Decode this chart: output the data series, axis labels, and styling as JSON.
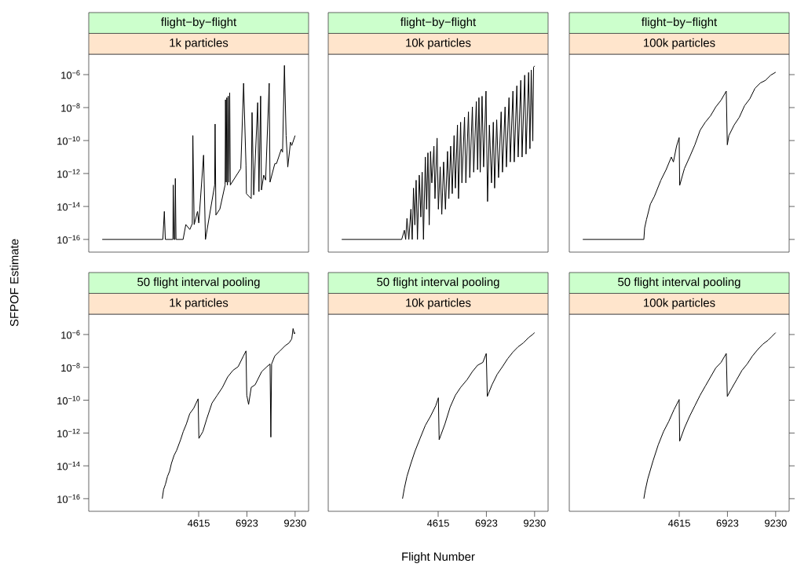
{
  "chart_data": [
    {
      "type": "line",
      "title": "flight−by−flight",
      "subtitle": "1k particles",
      "log": "y",
      "tick_labels": "y",
      "xlim": [
        -646,
        9876
      ],
      "ylim": [
        1.7e-17,
        1.74e-05
      ],
      "xticks": [
        4615,
        6923,
        9230
      ],
      "yticks": [
        {
          "value": 1e-16,
          "label": "10$^{−16}$"
        },
        {
          "value": 1e-14,
          "label": "10$^{−14}$"
        },
        {
          "value": 1e-12,
          "label": "10$^{−12}$"
        },
        {
          "value": 1e-10,
          "label": "10$^{−10}$"
        },
        {
          "value": 1e-08,
          "label": "10$^{−8}$"
        },
        {
          "value": 1e-06,
          "label": "10$^{−6}$"
        }
      ],
      "series": [
        {
          "color": "#000000",
          "x": [
            0,
            2900,
            2972,
            3020,
            3380,
            3398,
            3440,
            3480,
            3498,
            3530,
            3870,
            4000,
            4190,
            4310,
            4337,
            4400,
            4560,
            4620,
            4850,
            4940,
            5380,
            5401,
            5440,
            5630,
            5880,
            5900,
            5930,
            5960,
            5990,
            6030,
            6060,
            6100,
            6130,
            6630,
            6766,
            6880,
            6900,
            7130,
            7170,
            7250,
            7440,
            7500,
            7580,
            7620,
            7730,
            7820,
            7990,
            8030,
            8260,
            8340,
            8570,
            8630,
            8719,
            8800,
            8880,
            9010,
            9070,
            9230
          ],
          "values": [
            1e-16,
            1e-16,
            5e-15,
            1e-16,
            1e-16,
            2e-13,
            1e-16,
            1e-16,
            5e-13,
            1e-16,
            1e-16,
            8e-16,
            4e-16,
            9e-16,
            2e-10,
            8e-16,
            5e-15,
            1e-15,
            1.3e-11,
            1e-16,
            2e-13,
            1e-09,
            3e-15,
            7e-15,
            2e-13,
            3e-08,
            3e-13,
            4e-08,
            2e-13,
            5e-08,
            3e-13,
            8e-08,
            2e-13,
            2e-12,
            3e-07,
            3e-12,
            6e-14,
            3e-14,
            5e-09,
            5e-14,
            2e-08,
            8e-14,
            5e-08,
            1e-13,
            8e-13,
            4e-13,
            3e-07,
            3e-13,
            4e-12,
            4e-12,
            3e-11,
            2e-11,
            3.6e-06,
            2e-10,
            2.5e-12,
            8e-11,
            5e-11,
            2e-10
          ]
        }
      ]
    },
    {
      "type": "line",
      "title": "flight−by−flight",
      "subtitle": "10k particles",
      "log": "y",
      "tick_labels": false,
      "xlim": [
        -646,
        9876
      ],
      "ylim": [
        1.7e-17,
        1.74e-05
      ],
      "xticks": [
        4615,
        6923,
        9230
      ],
      "yticks": [
        1e-16,
        1e-14,
        1e-12,
        1e-10,
        1e-08,
        1e-06
      ],
      "series": [
        {
          "color": "#000000",
          "x": [
            0,
            2810,
            2870,
            2998,
            3060,
            3123,
            3211,
            3311,
            3373,
            3436,
            3499,
            3561,
            3624,
            3711,
            3787,
            3849,
            3912,
            4000,
            4062,
            4125,
            4187,
            4250,
            4312,
            4413,
            4463,
            4563,
            4625,
            4713,
            4788,
            4876,
            4963,
            5064,
            5126,
            5214,
            5289,
            5377,
            5439,
            5539,
            5589,
            5690,
            5752,
            5877,
            5940,
            6065,
            6128,
            6253,
            6316,
            6441,
            6503,
            6566,
            6629,
            6716,
            6791,
            6904,
            6979,
            7067,
            7167,
            7255,
            7317,
            7417,
            7505,
            7630,
            7693,
            7818,
            7881,
            8006,
            8068,
            8194,
            8256,
            8381,
            8444,
            8569,
            8632,
            8757,
            8820,
            8945,
            9007,
            9070,
            9145,
            9180,
            9230
          ],
          "values": [
            1e-16,
            1e-16,
            1e-16,
            3.6e-16,
            1e-16,
            1.9e-15,
            1e-16,
            6.8e-15,
            1e-16,
            1.3e-13,
            7.6e-16,
            3.9e-13,
            1e-16,
            8e-13,
            2.3e-15,
            1.2e-12,
            1e-16,
            1e-11,
            6.8e-15,
            1.8e-11,
            7.6e-16,
            2.2e-11,
            2.7e-13,
            4.6e-11,
            3e-14,
            1.4e-10,
            6.8e-15,
            2.5e-12,
            3.3e-15,
            5e-12,
            6.8e-15,
            2.2e-11,
            3e-14,
            4.6e-11,
            6e-14,
            2e-10,
            1.3e-13,
            8.7e-10,
            3e-14,
            1.3e-09,
            2.7e-13,
            2.6e-09,
            2.7e-13,
            5.5e-09,
            5.6e-13,
            1.1e-08,
            1.2e-12,
            2.3e-08,
            1.7e-12,
            4e-08,
            1.2e-12,
            4.9e-08,
            2.5e-12,
            1e-07,
            2e-14,
            8.7e-10,
            2.7e-13,
            1.3e-09,
            1.3e-13,
            1.8e-09,
            5.6e-13,
            5.5e-09,
            1.2e-12,
            1.1e-08,
            2.5e-12,
            4e-08,
            5e-12,
            1e-07,
            5e-12,
            2.1e-07,
            1e-11,
            4.5e-07,
            1e-11,
            9.3e-07,
            1.5e-11,
            1.35e-06,
            3.2e-11,
            1.9e-06,
            9.5e-11,
            2.8e-06,
            3.4e-06
          ]
        }
      ]
    },
    {
      "type": "line",
      "title": "flight−by−flight",
      "subtitle": "100k particles",
      "log": "y",
      "tick_labels": false,
      "xlim": [
        -646,
        9876
      ],
      "ylim": [
        1.7e-17,
        1.74e-05
      ],
      "xticks": [
        4615,
        6923,
        9230
      ],
      "yticks": [
        1e-16,
        1e-14,
        1e-12,
        1e-10,
        1e-08,
        1e-06
      ],
      "series": [
        {
          "color": "#000000",
          "x": [
            0,
            2922,
            2960,
            3048,
            3235,
            3423,
            3736,
            3987,
            4237,
            4337,
            4487,
            4612,
            4637,
            4863,
            5113,
            5364,
            5614,
            5864,
            6115,
            6365,
            6616,
            6866,
            6916,
            6991,
            7242,
            7492,
            7742,
            7993,
            8243,
            8494,
            8744,
            8995,
            9230
          ],
          "values": [
            1e-16,
            1e-16,
            5e-16,
            1.6e-15,
            1.4e-14,
            4e-14,
            3.9e-13,
            1.7e-12,
            1e-11,
            5e-12,
            4.6e-11,
            1.5e-10,
            1.9e-13,
            2e-12,
            1e-11,
            5.5e-11,
            4.2e-10,
            1.3e-09,
            3.2e-09,
            1.1e-08,
            2.8e-08,
            1e-07,
            5.5e-11,
            2e-10,
            8.7e-10,
            2.6e-09,
            1.3e-08,
            3.4e-08,
            1.5e-07,
            3.1e-07,
            4.5e-07,
            9.3e-07,
            1.4e-06
          ]
        }
      ]
    },
    {
      "type": "line",
      "title": "50 flight interval pooling",
      "subtitle": "1k particles",
      "ylabel": "SFPOF Estimate",
      "log": "y",
      "xlim": [
        -646,
        9876
      ],
      "ylim": [
        1.7e-17,
        1.74e-05
      ],
      "xticks": [
        4615,
        6923,
        9230
      ],
      "yticks": [
        {
          "value": 1e-16,
          "label": "10$^{−16}$"
        },
        {
          "value": 1e-14,
          "label": "10$^{−14}$"
        },
        {
          "value": 1e-12,
          "label": "10$^{−12}$"
        },
        {
          "value": 1e-10,
          "label": "10$^{−10}$"
        },
        {
          "value": 1e-08,
          "label": "10$^{−8}$"
        },
        {
          "value": 1e-06,
          "label": "10$^{−6}$"
        }
      ],
      "series": [
        {
          "color": "#000000",
          "x": [
            2873,
            2936,
            3024,
            3124,
            3224,
            3311,
            3437,
            3562,
            3750,
            3875,
            4025,
            4188,
            4376,
            4589,
            4626,
            4814,
            5002,
            5252,
            5503,
            5753,
            6003,
            6254,
            6504,
            6755,
            6880,
            6917,
            7005,
            7130,
            7318,
            7631,
            7881,
            8031,
            8069,
            8106,
            8256,
            8507,
            8757,
            8945,
            9070,
            9133,
            9196,
            9230
          ],
          "values": [
            1e-16,
            3.6e-16,
            7.5e-16,
            2.3e-15,
            4.7e-15,
            1.4e-14,
            4.3e-14,
            8.9e-14,
            3.9e-13,
            1.2e-12,
            3.5e-12,
            1.5e-11,
            3.2e-11,
            1.2e-10,
            4.7e-13,
            1.2e-12,
            7.3e-12,
            6.6e-11,
            2e-10,
            6e-10,
            2.6e-09,
            6.5e-09,
            1.1e-08,
            4.9e-08,
            1e-07,
            2e-10,
            5.5e-11,
            6e-10,
            8.7e-10,
            5.5e-09,
            1.1e-08,
            1.6e-08,
            5.6e-13,
            1.6e-08,
            4.9e-08,
            1e-07,
            2.1e-07,
            3.1e-07,
            5.4e-07,
            2.3e-06,
            1.1e-06,
            1.3e-06
          ]
        }
      ]
    },
    {
      "type": "line",
      "title": "50 flight interval pooling",
      "subtitle": "10k particles",
      "xlabel": "Flight Number",
      "log": "y",
      "tick_labels": "x",
      "xlim": [
        -646,
        9876
      ],
      "ylim": [
        1.7e-17,
        1.74e-05
      ],
      "xticks": [
        4615,
        6923,
        9230
      ],
      "yticks": [
        1e-16,
        1e-14,
        1e-12,
        1e-10,
        1e-08,
        1e-06
      ],
      "series": [
        {
          "color": "#000000",
          "x": [
            2910,
            2998,
            3123,
            3311,
            3499,
            3749,
            4000,
            4250,
            4500,
            4625,
            4663,
            4938,
            5189,
            5439,
            5690,
            6003,
            6253,
            6503,
            6754,
            6917,
            6967,
            7192,
            7442,
            7693,
            7943,
            8194,
            8444,
            8694,
            8945,
            9133,
            9230
          ],
          "values": [
            1e-16,
            4.3e-16,
            2.3e-15,
            1.4e-14,
            7.4e-14,
            4.7e-13,
            2.9e-12,
            1.05e-11,
            4.6e-11,
            1.4e-10,
            3.9e-13,
            3.5e-12,
            3.8e-11,
            2e-10,
            6e-10,
            1.8e-09,
            5.5e-09,
            1.35e-08,
            2e-08,
            7e-08,
            1.7e-10,
            8.7e-10,
            3.8e-09,
            1.1e-08,
            3.4e-08,
            8.5e-08,
            1.8e-07,
            3.1e-07,
            6.5e-07,
            1e-06,
            1.3e-06
          ]
        }
      ]
    },
    {
      "type": "line",
      "title": "50 flight interval pooling",
      "subtitle": "100k particles",
      "log": "y",
      "tick_labels": "x",
      "xlim": [
        -646,
        9876
      ],
      "ylim": [
        1.7e-17,
        1.74e-05
      ],
      "xticks": [
        4615,
        6923,
        9230
      ],
      "yticks": [
        1e-16,
        1e-14,
        1e-12,
        1e-10,
        1e-08,
        1e-06
      ],
      "series": [
        {
          "color": "#000000",
          "x": [
            2922,
            2985,
            3110,
            3361,
            3611,
            3861,
            4112,
            4362,
            4612,
            4637,
            4863,
            5113,
            5364,
            5614,
            5864,
            6115,
            6365,
            6616,
            6866,
            6916,
            7117,
            7367,
            7617,
            7868,
            8118,
            8368,
            8619,
            8869,
            9057,
            9230
          ],
          "values": [
            1e-16,
            3e-16,
            1.6e-15,
            2e-14,
            1.9e-13,
            1.2e-12,
            5e-12,
            2.6e-11,
            1.1e-10,
            3.2e-13,
            2e-12,
            1.05e-11,
            4.6e-11,
            2e-10,
            7.2e-10,
            2.6e-09,
            9.3e-09,
            2e-08,
            7e-08,
            1.7e-10,
            5e-10,
            1.8e-09,
            6.5e-09,
            1.6e-08,
            4.9e-08,
            1.2e-07,
            2.6e-07,
            4.5e-07,
            7.8e-07,
            1.3e-06
          ]
        }
      ]
    }
  ]
}
